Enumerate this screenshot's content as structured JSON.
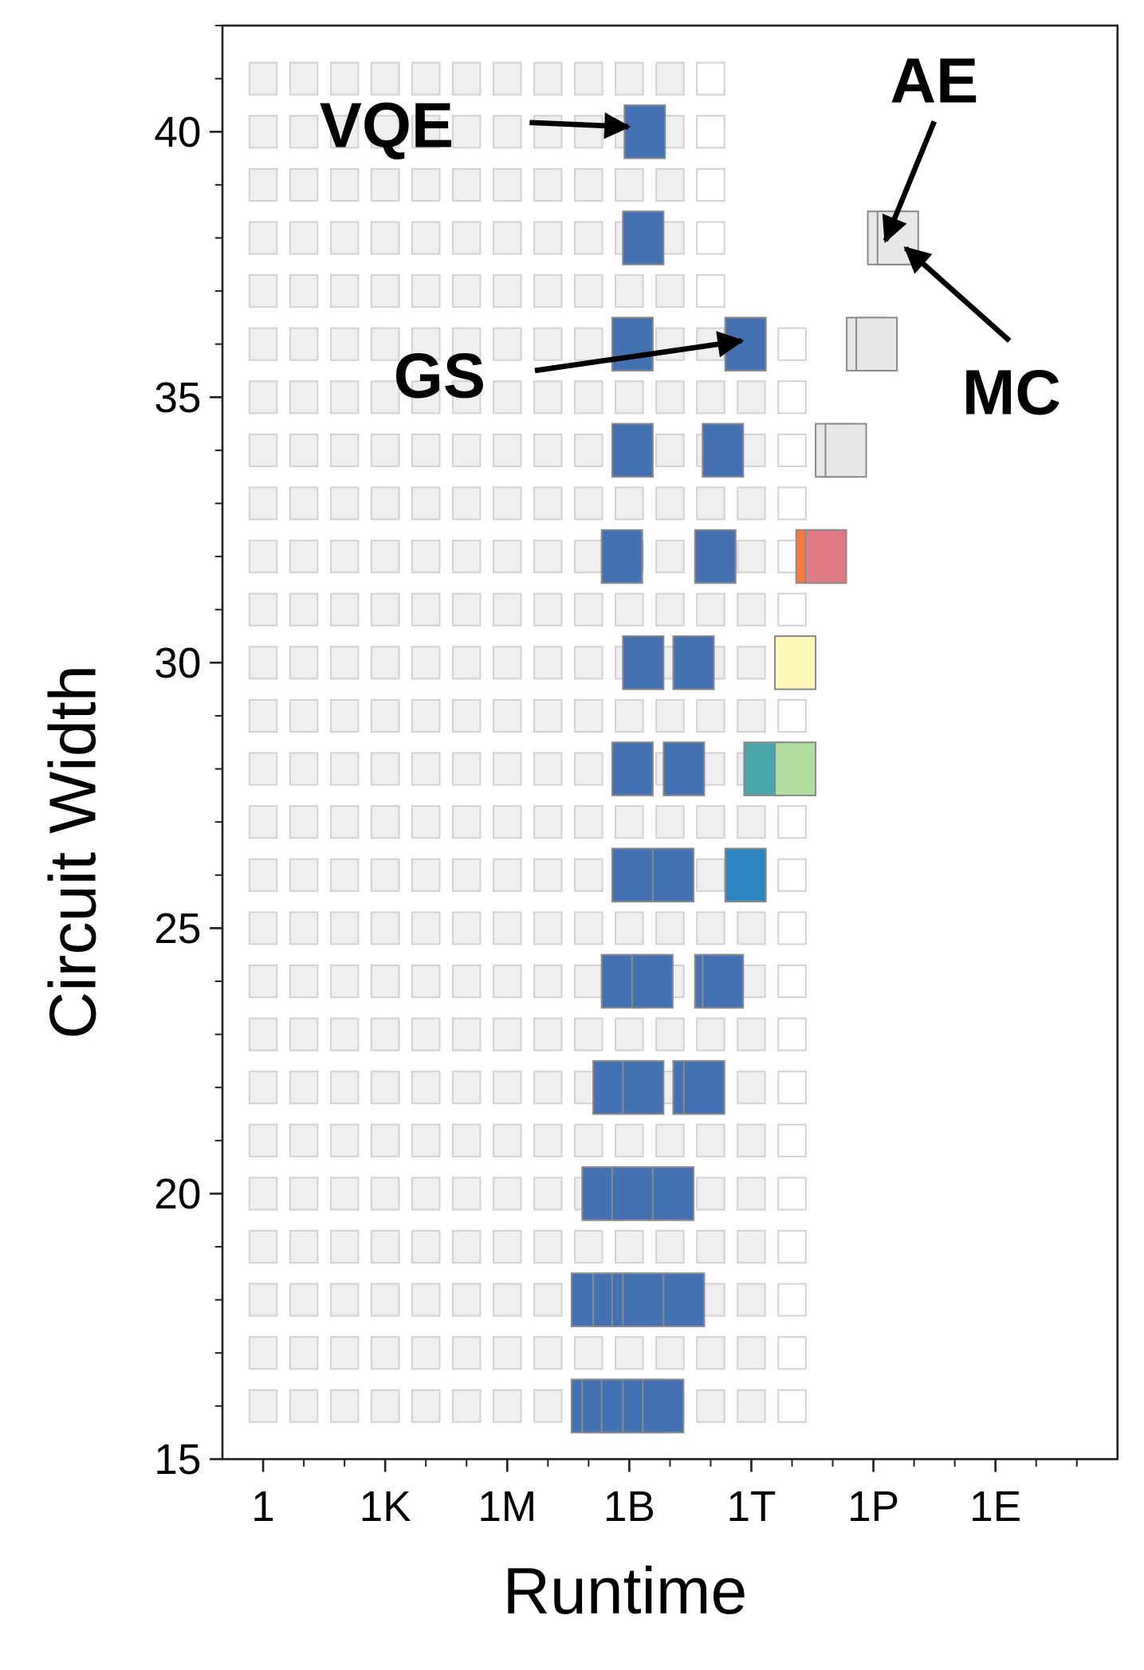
{
  "chart_data": {
    "type": "scatter",
    "x_label": "Runtime",
    "y_label": "Circuit Width",
    "x_log": true,
    "xlim": [
      0.1,
      1e+21
    ],
    "ylim": [
      15,
      42
    ],
    "xticks": [
      1,
      {
        "value": 1000,
        "label": "1K"
      },
      {
        "value": 1000000,
        "label": "1M"
      },
      {
        "value": 1000000000,
        "label": "1B"
      },
      {
        "value": 1000000000000,
        "label": "1T"
      },
      {
        "value": 1000000000000000.0,
        "label": "1P"
      },
      {
        "value": 1e+18,
        "label": "1E"
      }
    ],
    "yticks": [
      15,
      20,
      25,
      30,
      35,
      40
    ],
    "x_minor_ticks": [
      1,
      10,
      100,
      1000,
      10000,
      100000,
      1000000,
      10000000,
      100000000,
      1000000000,
      10000000000,
      100000000000,
      1000000000000,
      10000000000000.0,
      100000000000000.0,
      1000000000000000.0,
      1e+16,
      1e+17,
      1e+18,
      1e+19,
      1e+20
    ],
    "y_minor_ticks": [
      15,
      16,
      17,
      18,
      19,
      20,
      21,
      22,
      23,
      24,
      25,
      26,
      27,
      28,
      29,
      30,
      31,
      32,
      33,
      34,
      35,
      36,
      37,
      38,
      39,
      40,
      41,
      42
    ],
    "cells": {
      "from": 1,
      "color": "#efefef",
      "y": [
        16,
        17,
        18,
        19,
        20,
        21,
        22,
        23,
        24,
        25,
        26,
        27,
        28,
        29,
        30,
        31,
        32,
        33,
        34,
        35,
        36,
        37,
        38,
        39,
        40,
        41
      ],
      "gray_to": [
        1000000000000,
        1000000000000,
        1000000000000,
        1000000000000,
        1000000000000,
        1000000000000,
        1000000000000,
        1000000000000,
        1000000000000,
        1000000000000,
        1000000000000,
        1000000000000,
        1000000000000,
        1000000000000,
        1000000000000,
        1000000000000,
        1000000000000,
        1000000000000,
        1000000000000,
        1000000000000,
        1000000000000,
        10000000000,
        10000000000,
        10000000000,
        10000000000,
        10000000000
      ],
      "white_at": [
        10000000000000.0,
        10000000000000.0,
        10000000000000.0,
        10000000000000.0,
        10000000000000.0,
        10000000000000.0,
        10000000000000.0,
        10000000000000.0,
        10000000000000.0,
        10000000000000.0,
        10000000000000.0,
        10000000000000.0,
        10000000000000.0,
        10000000000000.0,
        10000000000000.0,
        10000000000000.0,
        10000000000000.0,
        10000000000000.0,
        10000000000000.0,
        10000000000000.0,
        10000000000000.0,
        100000000000,
        100000000000,
        100000000000,
        100000000000,
        100000000000
      ]
    },
    "series": [
      {
        "color": "#4470b4",
        "x": [
          2400000000,
          2200000000,
          1200000000,
          720000000000,
          1200000000,
          200000000000,
          660000000,
          130000000000,
          2200000000,
          38000000000,
          1200000000,
          22000000000,
          1200000000,
          12000000000,
          660000000,
          3700000000,
          130000000000,
          200000000000,
          410000000,
          2200000000,
          38000000000,
          69000000000,
          220000000,
          1200000000,
          12000000000,
          120000000,
          410000000,
          1200000000,
          2200000000,
          22000000000,
          120000000,
          220000000,
          660000000,
          2200000000,
          6800000000
        ],
        "y": [
          40,
          38,
          36,
          36,
          34,
          34,
          32,
          32,
          30,
          30,
          28,
          28,
          26,
          26,
          24,
          24,
          24,
          24,
          22,
          22,
          22,
          22,
          20,
          20,
          20,
          18,
          18,
          18,
          18,
          18,
          16,
          16,
          16,
          16,
          16
        ]
      },
      {
        "color": "#2e86c1",
        "x": [
          720000000000
        ],
        "y": [
          26
        ]
      },
      {
        "color": "#e8e8e8",
        "x": [
          2300000000000000,
          4000000000000000,
          700000000000000,
          1200000000000000,
          120000000000000,
          210000000000000
        ],
        "y": [
          38,
          38,
          36,
          36,
          34,
          34
        ]
      },
      {
        "color": "#f4793f",
        "x": [
          40000000000000
        ],
        "y": [
          32
        ]
      },
      {
        "color": "#e07b85",
        "x": [
          68000000000000
        ],
        "y": [
          32
        ]
      },
      {
        "color": "#fff8b8",
        "x": [
          12000000000000
        ],
        "y": [
          30
        ]
      },
      {
        "color": "#4aa6a8",
        "x": [
          2100000000000
        ],
        "y": [
          28
        ]
      },
      {
        "color": "#b0dfa0",
        "x": [
          12000000000000
        ],
        "y": [
          28
        ]
      }
    ],
    "annotations": [
      "VQE",
      "AE",
      "GS",
      "MC"
    ]
  }
}
